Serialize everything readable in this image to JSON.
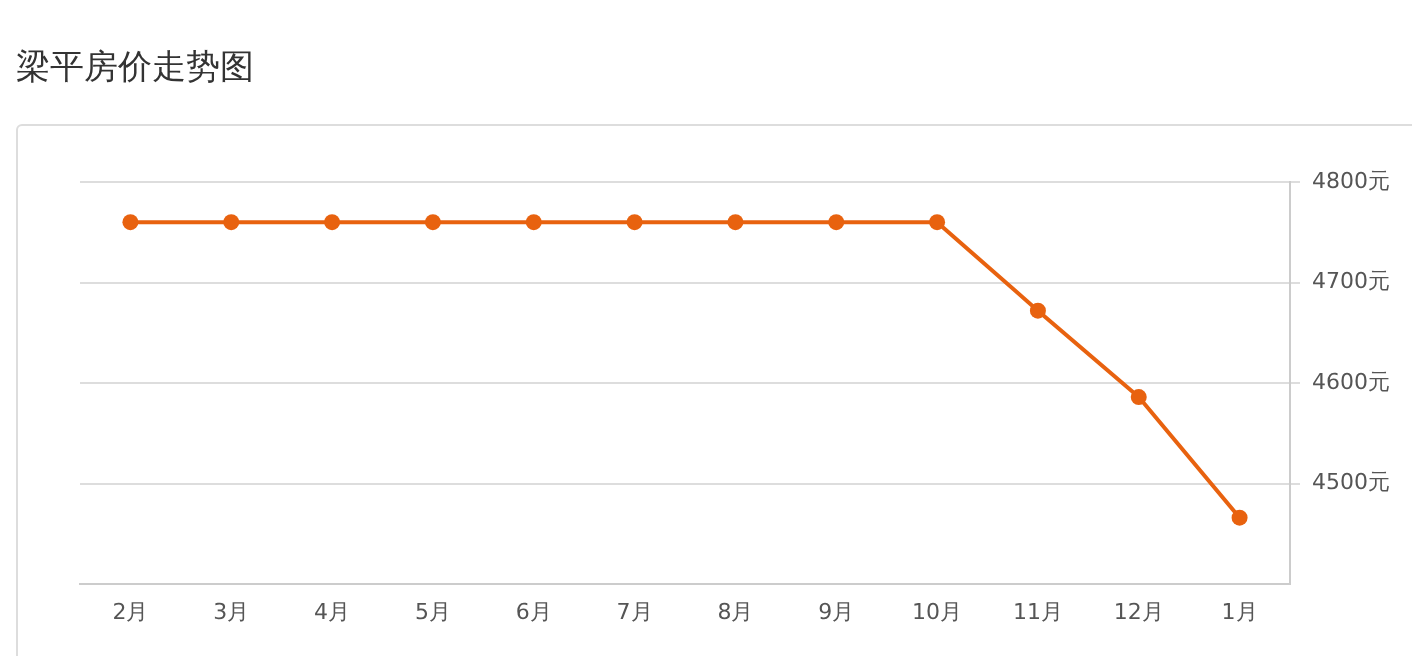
{
  "chart_data": {
    "type": "line",
    "title": "梁平房价走势图",
    "categories": [
      "2月",
      "3月",
      "4月",
      "5月",
      "6月",
      "7月",
      "8月",
      "9月",
      "10月",
      "11月",
      "12月",
      "1月"
    ],
    "series": [
      {
        "color": "#e8620f",
        "values": [
          4760,
          4760,
          4760,
          4760,
          4760,
          4760,
          4760,
          4760,
          4760,
          4672,
          4586,
          4466
        ]
      }
    ],
    "ylim": [
      4400,
      4800
    ],
    "yticks": [
      {
        "value": 4500,
        "label": "4500元"
      },
      {
        "value": 4600,
        "label": "4600元"
      },
      {
        "value": 4700,
        "label": "4700元"
      },
      {
        "value": 4800,
        "label": "4800元"
      }
    ],
    "grid": "y",
    "legend": false,
    "marker": "circle",
    "line_style": "solid"
  }
}
